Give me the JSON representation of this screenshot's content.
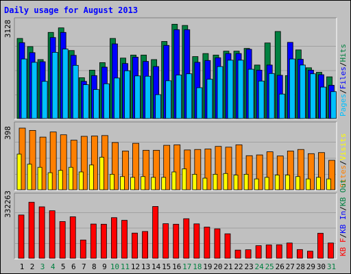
{
  "title": "Daily usage for August 2013",
  "colors": {
    "background": "#c0c0c0",
    "plot": "#c0c0c0",
    "hits": "#008040",
    "files": "#0000ff",
    "pages": "#00c0ff",
    "sites": "#ff8000",
    "visits": "#ffff00",
    "kbytes": "#ff0000",
    "title": "#0000ff",
    "weekend_label": "#008040",
    "weekday_label": "#000000"
  },
  "chart_data": [
    {
      "type": "bar",
      "panel": "hits-files-pages",
      "max_label": "3128",
      "side_label": [
        "Pages",
        "Files",
        "Hits"
      ],
      "categories": [
        "1",
        "2",
        "3",
        "4",
        "5",
        "6",
        "7",
        "8",
        "9",
        "10",
        "11",
        "12",
        "13",
        "14",
        "15",
        "16",
        "17",
        "18",
        "19",
        "20",
        "21",
        "22",
        "23",
        "24",
        "25",
        "26",
        "27",
        "28",
        "29",
        "30",
        "31"
      ],
      "ylim": [
        0,
        3128
      ],
      "series": [
        {
          "name": "Hits",
          "values": [
            2650,
            2380,
            1950,
            2850,
            3000,
            2250,
            1350,
            1600,
            1850,
            2650,
            2000,
            2100,
            2100,
            1950,
            2550,
            3120,
            3080,
            2050,
            2150,
            2100,
            2230,
            2230,
            2320,
            1770,
            2500,
            2880,
            1420,
            2270,
            1680,
            1530,
            1380
          ]
        },
        {
          "name": "Files",
          "values": [
            2510,
            2180,
            1880,
            2680,
            2850,
            2090,
            1230,
            1420,
            1700,
            2470,
            1820,
            2030,
            1890,
            1720,
            2420,
            2940,
            2940,
            1860,
            1920,
            2010,
            2150,
            2150,
            2290,
            1600,
            1770,
            1430,
            2520,
            1960,
            1600,
            1450,
            1100
          ]
        },
        {
          "name": "Pages",
          "values": [
            1970,
            1860,
            1230,
            2190,
            2300,
            1760,
            1120,
            960,
            1150,
            1340,
            1580,
            1410,
            1400,
            790,
            1250,
            1440,
            1480,
            1020,
            1300,
            1720,
            1930,
            1930,
            1630,
            1240,
            1490,
            810,
            1970,
            1770,
            1480,
            1040,
            890
          ]
        }
      ],
      "weekend_days": [
        "3",
        "4",
        "10",
        "11",
        "17",
        "18",
        "24",
        "25",
        "31"
      ]
    },
    {
      "type": "bar",
      "panel": "sites-visits",
      "max_label": "398",
      "side_label": [
        "Sites",
        "Visits"
      ],
      "categories": [
        "1",
        "2",
        "3",
        "4",
        "5",
        "6",
        "7",
        "8",
        "9",
        "10",
        "11",
        "12",
        "13",
        "14",
        "15",
        "16",
        "17",
        "18",
        "19",
        "20",
        "21",
        "22",
        "23",
        "24",
        "25",
        "26",
        "27",
        "28",
        "29",
        "30",
        "31"
      ],
      "ylim": [
        0,
        398
      ],
      "series": [
        {
          "name": "Sites",
          "values": [
            398,
            383,
            340,
            373,
            355,
            320,
            345,
            347,
            350,
            305,
            250,
            300,
            255,
            255,
            287,
            290,
            257,
            260,
            263,
            280,
            275,
            290,
            220,
            225,
            245,
            218,
            250,
            260,
            233,
            240,
            190
          ]
        },
        {
          "name": "Visits",
          "values": [
            230,
            165,
            145,
            110,
            125,
            145,
            115,
            160,
            210,
            100,
            85,
            80,
            85,
            80,
            80,
            115,
            135,
            100,
            75,
            100,
            105,
            95,
            100,
            70,
            80,
            95,
            95,
            85,
            70,
            80,
            70
          ]
        }
      ]
    },
    {
      "type": "bar",
      "panel": "kbytes",
      "max_label": "332263",
      "side_label": [
        "KB F",
        "KB In",
        "KB Out"
      ],
      "categories": [
        "1",
        "2",
        "3",
        "4",
        "5",
        "6",
        "7",
        "8",
        "9",
        "10",
        "11",
        "12",
        "13",
        "14",
        "15",
        "16",
        "17",
        "18",
        "19",
        "20",
        "21",
        "22",
        "23",
        "24",
        "25",
        "26",
        "27",
        "28",
        "29",
        "30",
        "31"
      ],
      "ylim": [
        0,
        332263
      ],
      "series": [
        {
          "name": "KBytes",
          "values": [
            244000,
            316000,
            290000,
            268000,
            207000,
            234000,
            103000,
            193000,
            192000,
            229000,
            214000,
            142000,
            151000,
            292000,
            195000,
            192000,
            223000,
            194000,
            176000,
            166000,
            138000,
            46000,
            48000,
            71000,
            75000,
            76000,
            86000,
            49000,
            40000,
            141000,
            86000
          ]
        }
      ]
    }
  ]
}
